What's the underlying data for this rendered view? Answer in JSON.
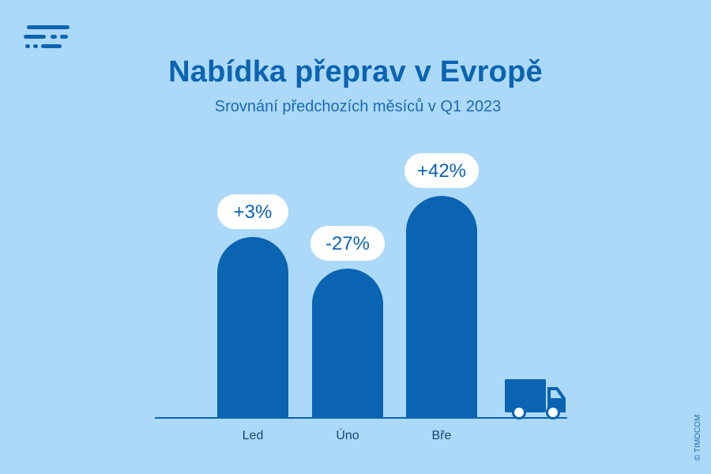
{
  "title": "Nabídka přeprav v Evropě",
  "subtitle": "Srovnání předchozích měsíců v Q1 2023",
  "credit": "© TIMOCOM",
  "colors": {
    "background": "#acd9f8",
    "bar": "#0a64b1",
    "label_bubble": "#ffffff",
    "text": "#0a64b1"
  },
  "chart_data": {
    "type": "bar",
    "categories": [
      "Led",
      "Úno",
      "Bře"
    ],
    "values": [
      3,
      -27,
      42
    ],
    "data_labels": [
      "+3%",
      "-27%",
      "+42%"
    ],
    "unit": "%",
    "title": "Nabídka přeprav v Evropě",
    "subtitle": "Srovnání předchozích měsíců v Q1 2023",
    "grid": false,
    "legend": "none"
  },
  "icons": {
    "logo": "timocom-logo-icon",
    "truck": "delivery-truck-icon"
  }
}
